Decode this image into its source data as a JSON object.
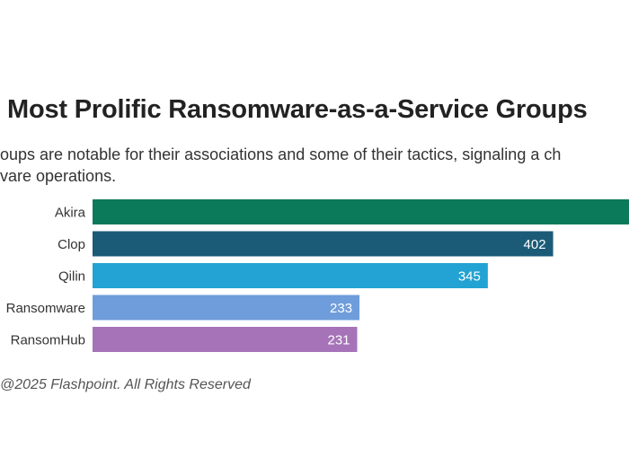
{
  "title": "Most Prolific Ransomware-as-a-Service Groups",
  "subtitle_lines": [
    "oups are notable for their associations and some of their tactics, signaling a ch",
    "vare operations."
  ],
  "footer": "@2025 Flashpoint. All Rights Reserved",
  "chart_data": {
    "type": "bar",
    "orientation": "horizontal",
    "categories": [
      "Akira",
      "Clop",
      "Qilin",
      "Ransomware",
      "RansomHub"
    ],
    "values": [
      null,
      402,
      345,
      233,
      231
    ],
    "data_labels": [
      "",
      "402",
      "345",
      "233",
      "231"
    ],
    "colors": [
      "#0b7a5a",
      "#1b5b78",
      "#22a3d3",
      "#6f9ddc",
      "#a673b8"
    ],
    "xlabel": "",
    "ylabel": "",
    "grid": false,
    "legend": "none"
  }
}
